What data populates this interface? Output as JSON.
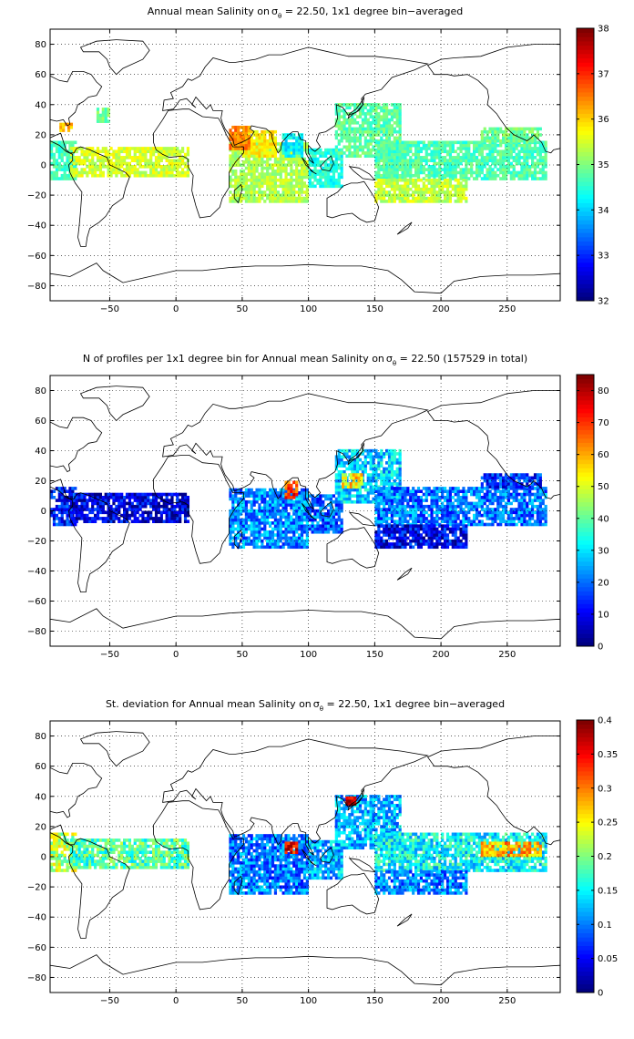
{
  "chart_data": [
    {
      "type": "heatmap",
      "title_parts": {
        "pre": "Annual mean Salinity on",
        "symbol": "σ",
        "sub": "θ",
        "post": " = 22.50, 1x1 degree bin−averaged"
      },
      "xlim": [
        -95,
        290
      ],
      "ylim": [
        -90,
        90
      ],
      "x_ticks": [
        "−50",
        "0",
        "50",
        "100",
        "150",
        "200",
        "250"
      ],
      "x_tick_values": [
        -50,
        0,
        50,
        100,
        150,
        200,
        250
      ],
      "y_ticks": [
        "80",
        "60",
        "40",
        "20",
        "0",
        "−20",
        "−40",
        "−60",
        "−80"
      ],
      "y_tick_values": [
        80,
        60,
        40,
        20,
        0,
        -20,
        -40,
        -60,
        -80
      ],
      "grid": true,
      "colorbar": {
        "min": 32,
        "max": 38,
        "ticks": [
          "38",
          "37",
          "36",
          "35",
          "34",
          "33",
          "32"
        ],
        "tick_values": [
          38,
          37,
          36,
          35,
          34,
          33,
          32
        ]
      },
      "regions": [
        {
          "x0": -95,
          "x1": -75,
          "y0": -10,
          "y1": 15,
          "value": 34.6
        },
        {
          "x0": -80,
          "x1": 10,
          "y0": -8,
          "y1": 12,
          "value": 35.5
        },
        {
          "x0": -88,
          "x1": -78,
          "y0": 22,
          "y1": 28,
          "value": 36.2
        },
        {
          "x0": -60,
          "x1": -50,
          "y0": 28,
          "y1": 38,
          "value": 34.9
        },
        {
          "x0": 40,
          "x1": 100,
          "y0": -25,
          "y1": 15,
          "value": 35.3
        },
        {
          "x0": 50,
          "x1": 75,
          "y0": 5,
          "y1": 22,
          "value": 35.8
        },
        {
          "x0": 80,
          "x1": 95,
          "y0": 5,
          "y1": 20,
          "value": 34.2
        },
        {
          "x0": 100,
          "x1": 125,
          "y0": -15,
          "y1": 10,
          "value": 34.4
        },
        {
          "x0": 120,
          "x1": 170,
          "y0": 5,
          "y1": 40,
          "value": 34.8
        },
        {
          "x0": 150,
          "x1": 280,
          "y0": -10,
          "y1": 15,
          "value": 34.7
        },
        {
          "x0": 150,
          "x1": 220,
          "y0": -25,
          "y1": -10,
          "value": 35.4
        },
        {
          "x0": 230,
          "x1": 275,
          "y0": 15,
          "y1": 25,
          "value": 34.9
        },
        {
          "x0": 40,
          "x1": 55,
          "y0": 10,
          "y1": 25,
          "value": 36.5
        }
      ]
    },
    {
      "type": "heatmap",
      "title_parts": {
        "pre": "N of profiles per 1x1 degree bin for Annual mean Salinity on",
        "symbol": "σ",
        "sub": "θ",
        "post": " = 22.50 (157529 in total)"
      },
      "xlim": [
        -95,
        290
      ],
      "ylim": [
        -90,
        90
      ],
      "x_ticks": [
        "−50",
        "0",
        "50",
        "100",
        "150",
        "200",
        "250"
      ],
      "x_tick_values": [
        -50,
        0,
        50,
        100,
        150,
        200,
        250
      ],
      "y_ticks": [
        "80",
        "60",
        "40",
        "20",
        "0",
        "−20",
        "−40",
        "−60",
        "−80"
      ],
      "y_tick_values": [
        80,
        60,
        40,
        20,
        0,
        -20,
        -40,
        -60,
        -80
      ],
      "grid": true,
      "colorbar": {
        "min": 0,
        "max": 85,
        "ticks": [
          "80",
          "70",
          "60",
          "50",
          "40",
          "30",
          "20",
          "10",
          "0"
        ],
        "tick_values": [
          80,
          70,
          60,
          50,
          40,
          30,
          20,
          10,
          0
        ]
      },
      "regions": [
        {
          "x0": -95,
          "x1": -75,
          "y0": -10,
          "y1": 15,
          "value": 12
        },
        {
          "x0": -80,
          "x1": 10,
          "y0": -8,
          "y1": 12,
          "value": 8
        },
        {
          "x0": 40,
          "x1": 100,
          "y0": -25,
          "y1": 15,
          "value": 22
        },
        {
          "x0": 82,
          "x1": 92,
          "y0": 8,
          "y1": 20,
          "value": 70
        },
        {
          "x0": 100,
          "x1": 125,
          "y0": -15,
          "y1": 10,
          "value": 18
        },
        {
          "x0": 120,
          "x1": 170,
          "y0": 5,
          "y1": 40,
          "value": 28
        },
        {
          "x0": 125,
          "x1": 140,
          "y0": 15,
          "y1": 25,
          "value": 55
        },
        {
          "x0": 150,
          "x1": 280,
          "y0": -10,
          "y1": 15,
          "value": 20
        },
        {
          "x0": 150,
          "x1": 220,
          "y0": -25,
          "y1": -10,
          "value": 10
        },
        {
          "x0": 230,
          "x1": 275,
          "y0": 15,
          "y1": 25,
          "value": 14
        }
      ]
    },
    {
      "type": "heatmap",
      "title_parts": {
        "pre": "St. deviation for Annual mean Salinity on",
        "symbol": "σ",
        "sub": "θ",
        "post": " = 22.50, 1x1 degree bin−averaged"
      },
      "xlim": [
        -95,
        290
      ],
      "ylim": [
        -90,
        90
      ],
      "x_ticks": [
        "−50",
        "0",
        "50",
        "100",
        "150",
        "200",
        "250"
      ],
      "x_tick_values": [
        -50,
        0,
        50,
        100,
        150,
        200,
        250
      ],
      "y_ticks": [
        "80",
        "60",
        "40",
        "20",
        "0",
        "−20",
        "−40",
        "−60",
        "−80"
      ],
      "y_tick_values": [
        80,
        60,
        40,
        20,
        0,
        -20,
        -40,
        -60,
        -80
      ],
      "grid": true,
      "colorbar": {
        "min": 0,
        "max": 0.4,
        "ticks": [
          "0.4",
          "0.35",
          "0.3",
          "0.25",
          "0.2",
          "0.15",
          "0.1",
          "0.05",
          "0"
        ],
        "tick_values": [
          0.4,
          0.35,
          0.3,
          0.25,
          0.2,
          0.15,
          0.1,
          0.05,
          0
        ]
      },
      "regions": [
        {
          "x0": -95,
          "x1": -75,
          "y0": -10,
          "y1": 15,
          "value": 0.22
        },
        {
          "x0": -80,
          "x1": 10,
          "y0": -8,
          "y1": 12,
          "value": 0.18
        },
        {
          "x0": 40,
          "x1": 100,
          "y0": -25,
          "y1": 15,
          "value": 0.1
        },
        {
          "x0": 82,
          "x1": 92,
          "y0": 2,
          "y1": 10,
          "value": 0.35
        },
        {
          "x0": 100,
          "x1": 125,
          "y0": -15,
          "y1": 10,
          "value": 0.12
        },
        {
          "x0": 120,
          "x1": 170,
          "y0": 5,
          "y1": 40,
          "value": 0.12
        },
        {
          "x0": 128,
          "x1": 136,
          "y0": 34,
          "y1": 40,
          "value": 0.38
        },
        {
          "x0": 150,
          "x1": 280,
          "y0": -10,
          "y1": 15,
          "value": 0.15
        },
        {
          "x0": 150,
          "x1": 220,
          "y0": -25,
          "y1": -10,
          "value": 0.1
        },
        {
          "x0": 230,
          "x1": 275,
          "y0": 0,
          "y1": 10,
          "value": 0.28
        }
      ]
    }
  ]
}
